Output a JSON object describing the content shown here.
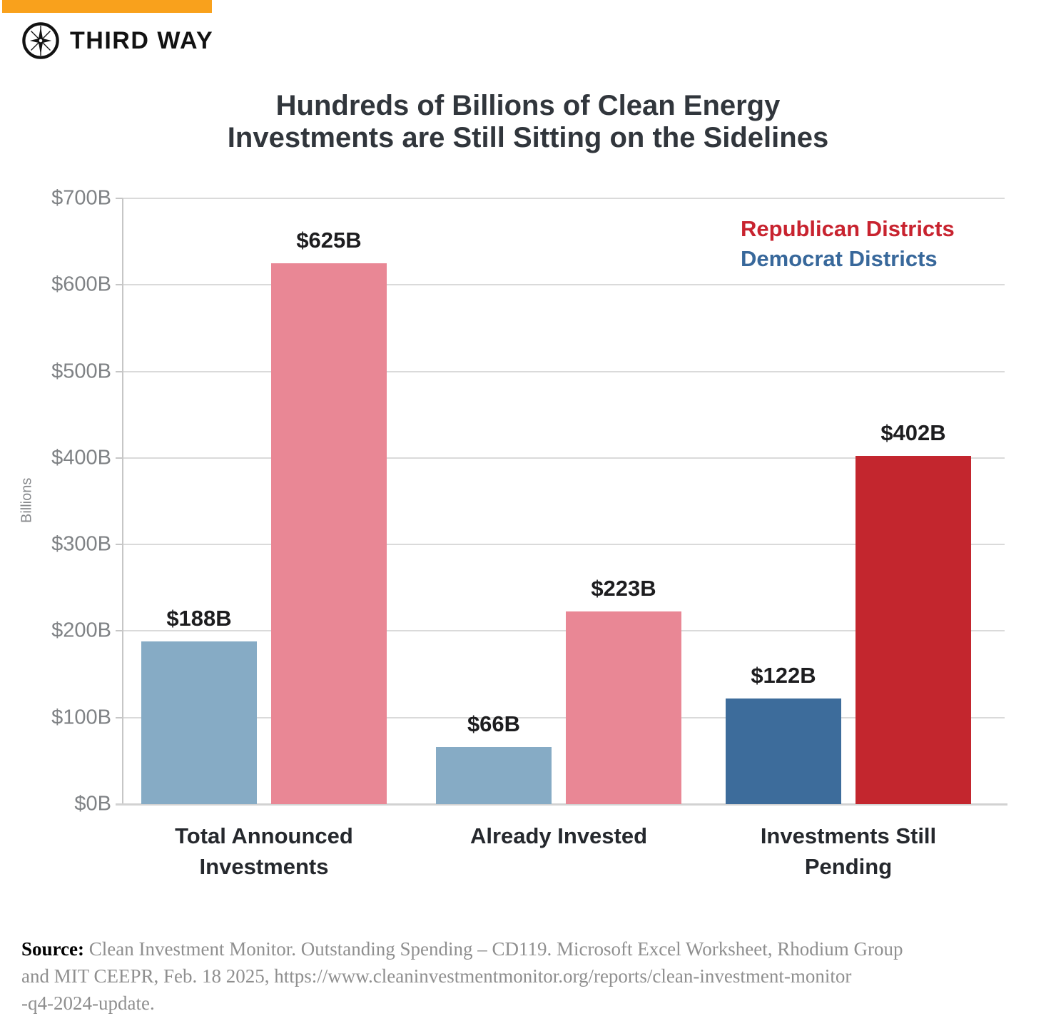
{
  "brand": {
    "name": "THIRD WAY"
  },
  "title": {
    "line1": "Hundreds of Billions of Clean Energy",
    "line2": "Investments are Still Sitting on the Sidelines"
  },
  "chart_data": {
    "type": "bar",
    "title": "Hundreds of Billions of Clean Energy Investments are Still Sitting on the Sidelines",
    "xlabel": "",
    "ylabel": "Billions",
    "ylim": [
      0,
      700
    ],
    "yticks": [
      0,
      100,
      200,
      300,
      400,
      500,
      600,
      700
    ],
    "ytick_labels": [
      "$0B",
      "$100B",
      "$200B",
      "$300B",
      "$400B",
      "$500B",
      "$600B",
      "$700B"
    ],
    "grid": "horizontal",
    "legend_position": "top-right",
    "categories": [
      "Total Announced\nInvestments",
      "Already Invested",
      "Investments Still\nPending"
    ],
    "series": [
      {
        "name": "Democrat Districts",
        "values": [
          188,
          66,
          122
        ],
        "labels": [
          "$188B",
          "$66B",
          "$122B"
        ],
        "colors": [
          "#86ABC5",
          "#86ABC5",
          "#3D6C9B"
        ]
      },
      {
        "name": "Republican Districts",
        "values": [
          625,
          223,
          402
        ],
        "labels": [
          "$625B",
          "$223B",
          "$402B"
        ],
        "colors": [
          "#E98795",
          "#E98795",
          "#C3262E"
        ]
      }
    ],
    "legend": [
      {
        "label": "Republican Districts",
        "color": "#C8232F"
      },
      {
        "label": "Democrat Districts",
        "color": "#38689B"
      }
    ]
  },
  "source": {
    "label": "Source:",
    "lines": [
      "Clean Investment Monitor. Outstanding Spending – CD119. Microsoft Excel Worksheet, Rhodium Group",
      "and MIT CEEPR, Feb. 18 2025, https://www.cleaninvestmentmonitor.org/reports/clean-investment-monitor",
      "-q4-2024-update."
    ]
  },
  "colors": {
    "accent_bar": "#F9A11C"
  }
}
